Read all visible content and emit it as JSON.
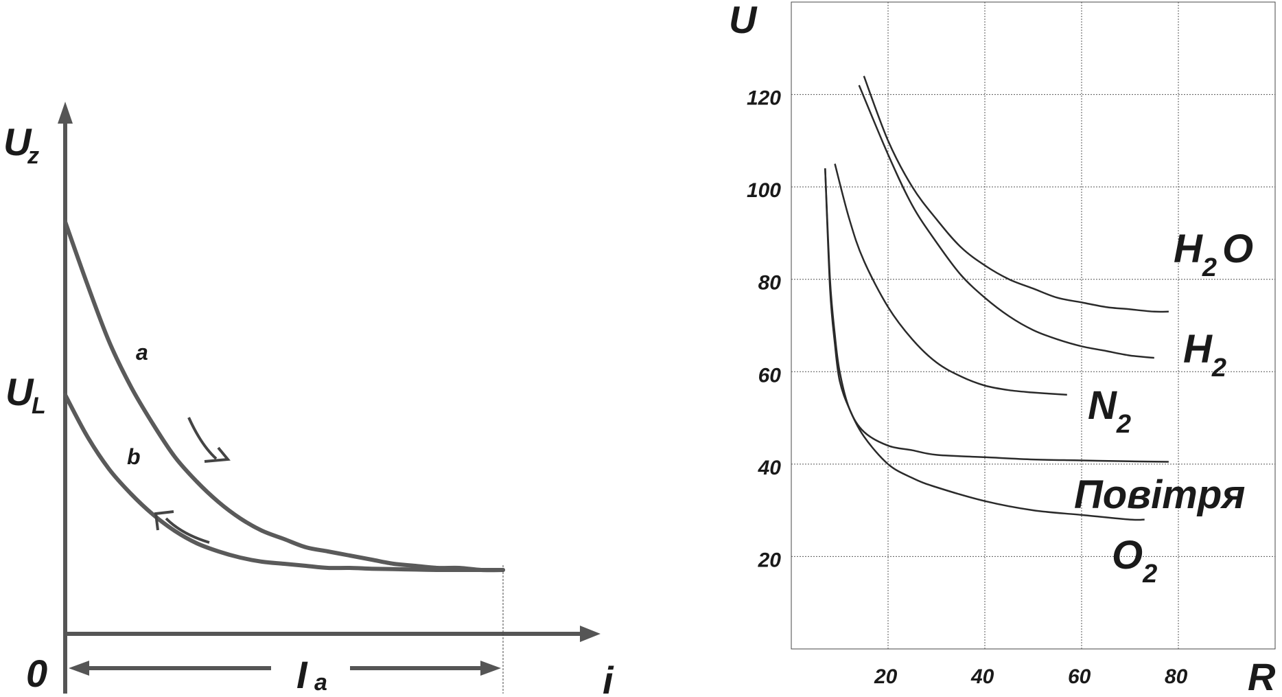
{
  "chart_data": [
    {
      "type": "line",
      "xlabel": "i",
      "ylabel": "U_z",
      "origin_label": "0",
      "y_marker": "U_L",
      "span_label": "I_a",
      "grid": false,
      "series": [
        {
          "name": "a",
          "x": [
            0,
            0.05,
            0.1,
            0.15,
            0.2,
            0.25,
            0.3,
            0.35,
            0.4,
            0.45,
            0.5,
            0.55,
            0.6,
            0.65,
            0.7,
            0.75,
            0.8,
            0.85,
            0.9,
            0.95,
            1.0
          ],
          "y": [
            1.0,
            0.85,
            0.71,
            0.6,
            0.51,
            0.43,
            0.37,
            0.32,
            0.28,
            0.25,
            0.23,
            0.21,
            0.2,
            0.19,
            0.18,
            0.17,
            0.165,
            0.16,
            0.16,
            0.155,
            0.155
          ]
        },
        {
          "name": "b",
          "x": [
            0,
            0.05,
            0.1,
            0.15,
            0.2,
            0.25,
            0.3,
            0.35,
            0.4,
            0.45,
            0.5,
            0.55,
            0.6,
            0.65,
            0.7,
            0.75,
            0.8,
            0.85,
            0.9,
            0.95,
            1.0
          ],
          "y": [
            0.58,
            0.48,
            0.4,
            0.34,
            0.29,
            0.25,
            0.22,
            0.2,
            0.185,
            0.175,
            0.17,
            0.165,
            0.16,
            0.16,
            0.158,
            0.157,
            0.156,
            0.155,
            0.155,
            0.155,
            0.155
          ]
        }
      ]
    },
    {
      "type": "line",
      "xlabel": "R",
      "ylabel": "U",
      "xlim": [
        0,
        100
      ],
      "ylim": [
        0,
        140
      ],
      "xticks": [
        "20",
        "40",
        "60",
        "80"
      ],
      "yticks": [
        "20",
        "40",
        "60",
        "80",
        "100",
        "120"
      ],
      "grid": true,
      "series": [
        {
          "name": "H2O",
          "sub": "2",
          "pre": "H",
          "post": "O",
          "x": [
            15,
            20,
            25,
            30,
            35,
            40,
            45,
            50,
            55,
            60,
            65,
            70,
            75,
            78
          ],
          "y": [
            124,
            110,
            100,
            93,
            87,
            83,
            80,
            78,
            76,
            75,
            74,
            73.5,
            73,
            73
          ]
        },
        {
          "name": "H2",
          "sub": "2",
          "pre": "H",
          "post": "",
          "x": [
            14,
            20,
            25,
            30,
            35,
            40,
            45,
            50,
            55,
            60,
            65,
            70,
            75
          ],
          "y": [
            122,
            107,
            96,
            88,
            81,
            76,
            72,
            69,
            67,
            65.5,
            64.5,
            63.5,
            63
          ]
        },
        {
          "name": "N2",
          "sub": "2",
          "pre": "N",
          "post": "",
          "x": [
            9,
            12,
            15,
            20,
            25,
            30,
            35,
            40,
            45,
            50,
            57
          ],
          "y": [
            105,
            93,
            84,
            74,
            67,
            62,
            59,
            57,
            56,
            55.5,
            55
          ]
        },
        {
          "name": "Повітря",
          "x": [
            7,
            8,
            9,
            10,
            12,
            15,
            20,
            25,
            30,
            40,
            50,
            60,
            70,
            78
          ],
          "y": [
            104,
            80,
            68,
            60,
            52,
            47,
            44,
            43,
            42,
            41.5,
            41,
            40.8,
            40.6,
            40.5
          ]
        },
        {
          "name": "O2",
          "sub": "2",
          "pre": "O",
          "post": "",
          "x": [
            7,
            8,
            9,
            10,
            12,
            15,
            20,
            25,
            30,
            40,
            50,
            60,
            70,
            73
          ],
          "y": [
            104,
            78,
            66,
            58,
            52,
            46,
            40,
            37,
            35,
            32,
            30,
            29,
            28,
            28
          ]
        }
      ]
    }
  ]
}
